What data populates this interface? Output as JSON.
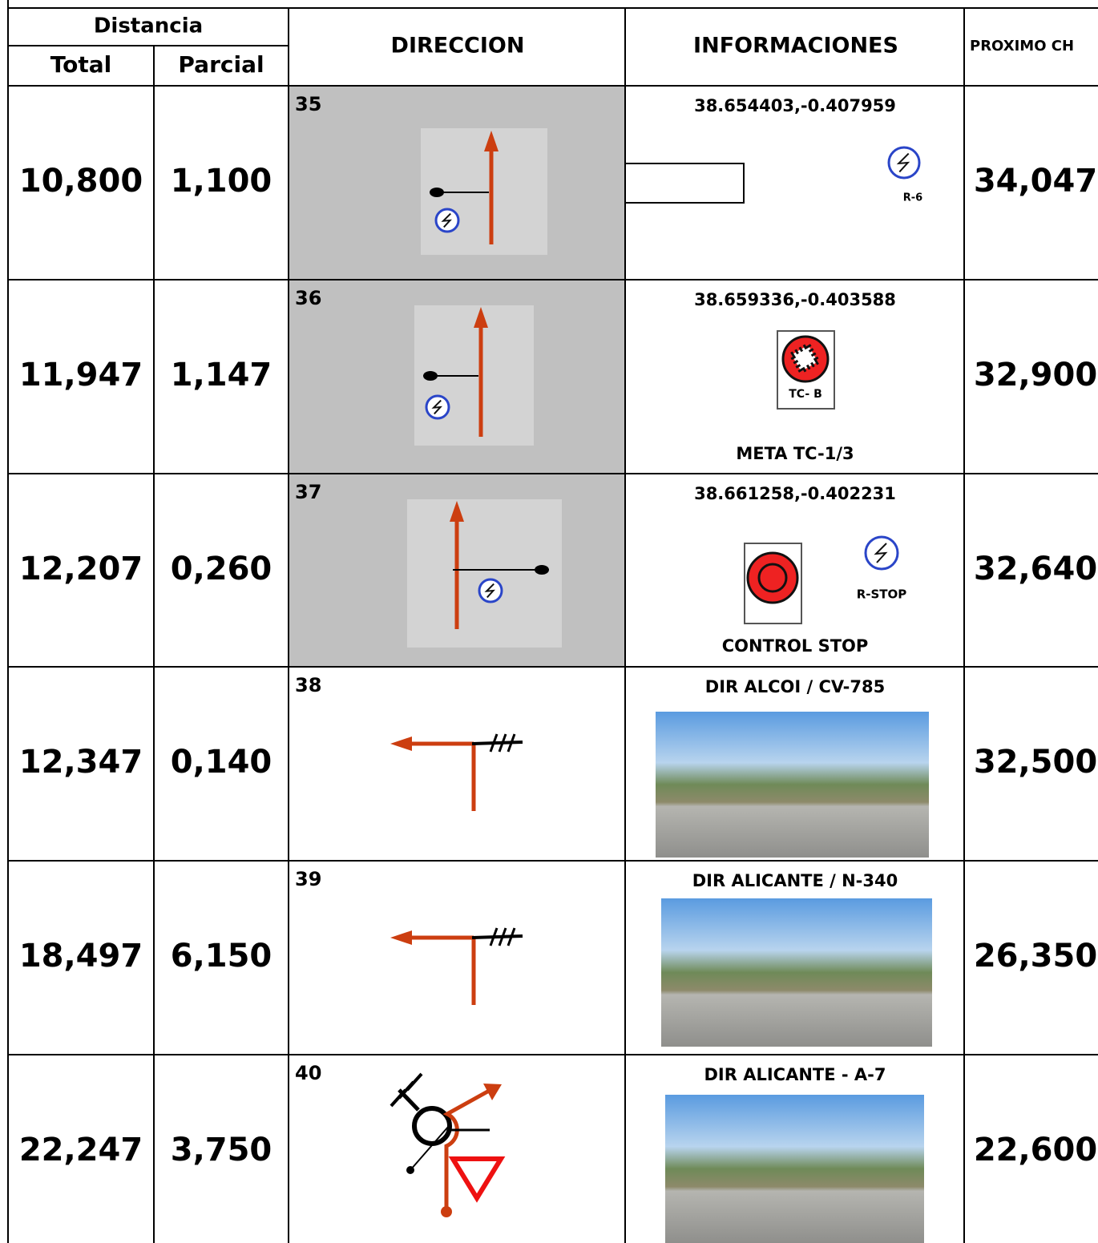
{
  "header": {
    "distancia": "Distancia",
    "total": "Total",
    "parcial": "Parcial",
    "direccion": "DIRECCION",
    "informaciones": "INFORMACIONES",
    "proximo_ch": "PROXIMO CH"
  },
  "rows": [
    {
      "total": "10,800",
      "parcial": "1,100",
      "number": "35",
      "info_title": "38.654403,-0.407959",
      "signs": [
        "R-6"
      ],
      "proximo": "34,047"
    },
    {
      "total": "11,947",
      "parcial": "1,147",
      "number": "36",
      "info_title": "38.659336,-0.403588",
      "signs": [
        "TC- B"
      ],
      "note": "META TC-1/3",
      "proximo": "32,900"
    },
    {
      "total": "12,207",
      "parcial": "0,260",
      "number": "37",
      "info_title": "38.661258,-0.402231",
      "signs": [
        "R-STOP"
      ],
      "note": "CONTROL STOP",
      "proximo": "32,640"
    },
    {
      "total": "12,347",
      "parcial": "0,140",
      "number": "38",
      "info_title": "DIR ALCOI  /  CV-785",
      "proximo": "32,500"
    },
    {
      "total": "18,497",
      "parcial": "6,150",
      "number": "39",
      "info_title": "DIR ALICANTE / N-340",
      "proximo": "26,350"
    },
    {
      "total": "22,247",
      "parcial": "3,750",
      "number": "40",
      "info_title": "DIR ALICANTE - A-7",
      "proximo": "22,600"
    }
  ]
}
